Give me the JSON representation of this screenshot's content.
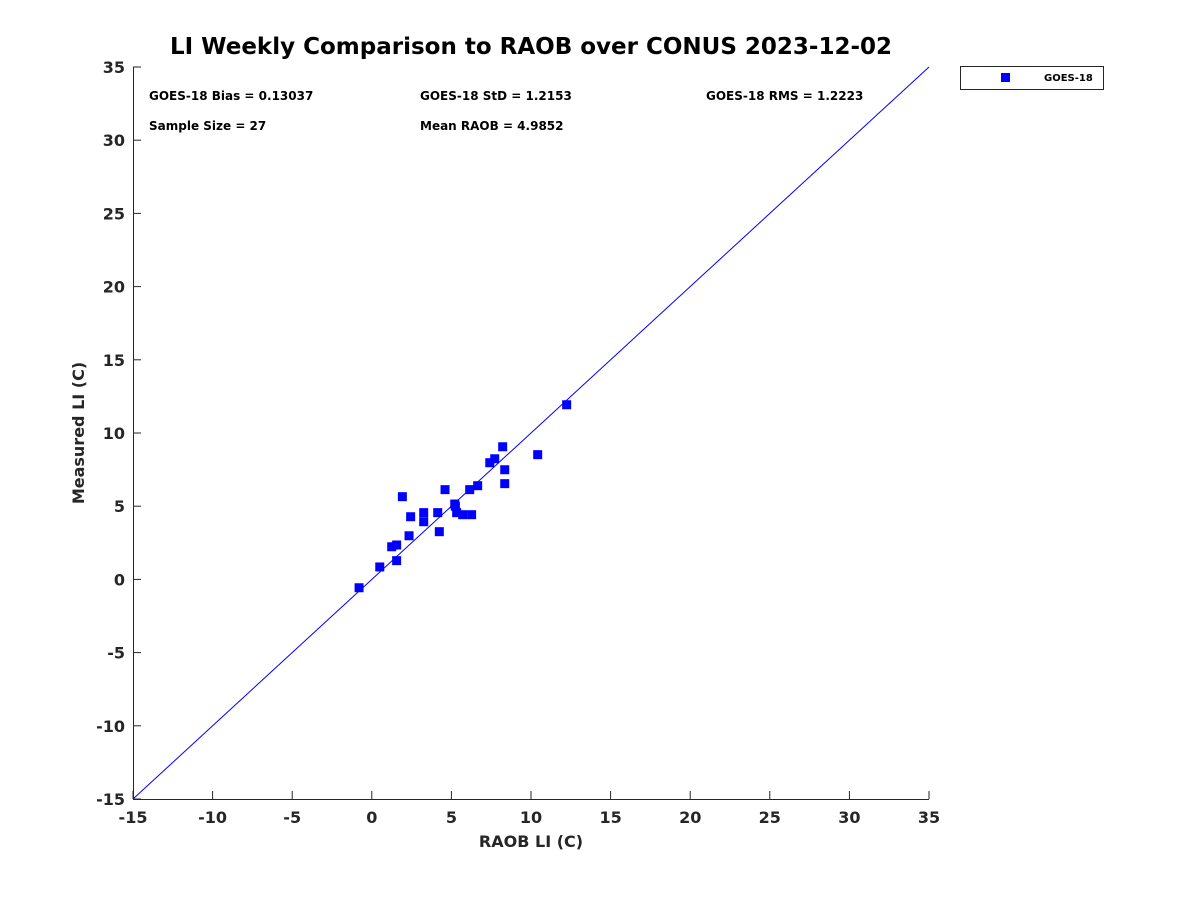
{
  "chart_data": {
    "type": "scatter",
    "title": "LI Weekly Comparison to RAOB over CONUS 2023-12-02",
    "xlabel": "RAOB LI (C)",
    "ylabel": "Measured LI (C)",
    "xlim": [
      -15,
      35
    ],
    "ylim": [
      -15,
      35
    ],
    "xticks": [
      -15,
      -10,
      -5,
      0,
      5,
      10,
      15,
      20,
      25,
      30,
      35
    ],
    "yticks": [
      -15,
      -10,
      -5,
      0,
      5,
      10,
      15,
      20,
      25,
      30,
      35
    ],
    "grid": false,
    "legend": {
      "placement": "outside-top-right",
      "entries": [
        "GOES-18"
      ]
    },
    "series": [
      {
        "name": "GOES-18",
        "color": "#0000ff",
        "marker": "square",
        "points": [
          [
            -0.8,
            -0.57
          ],
          [
            0.5,
            0.85
          ],
          [
            1.25,
            2.23
          ],
          [
            1.56,
            2.35
          ],
          [
            1.56,
            1.28
          ],
          [
            1.92,
            5.65
          ],
          [
            2.34,
            2.98
          ],
          [
            2.44,
            4.28
          ],
          [
            3.26,
            4.56
          ],
          [
            3.26,
            3.94
          ],
          [
            4.14,
            4.56
          ],
          [
            4.24,
            3.26
          ],
          [
            4.6,
            6.13
          ],
          [
            5.21,
            5.15
          ],
          [
            5.25,
            5.0
          ],
          [
            5.33,
            4.56
          ],
          [
            5.71,
            4.42
          ],
          [
            6.27,
            4.42
          ],
          [
            6.15,
            6.13
          ],
          [
            6.65,
            6.4
          ],
          [
            7.41,
            7.97
          ],
          [
            7.72,
            8.24
          ],
          [
            8.22,
            9.06
          ],
          [
            8.35,
            7.49
          ],
          [
            8.35,
            6.54
          ],
          [
            10.42,
            8.52
          ],
          [
            12.24,
            11.93
          ]
        ]
      }
    ],
    "reference_line": {
      "name": "1:1 line",
      "color": "#0000ff",
      "from": [
        -15,
        -15
      ],
      "to": [
        35,
        35
      ]
    },
    "annotations": [
      "GOES-18 Bias = 0.13037",
      "GOES-18 StD = 1.2153",
      "GOES-18 RMS = 1.2223",
      "Sample Size = 27",
      "Mean RAOB = 4.9852"
    ]
  }
}
